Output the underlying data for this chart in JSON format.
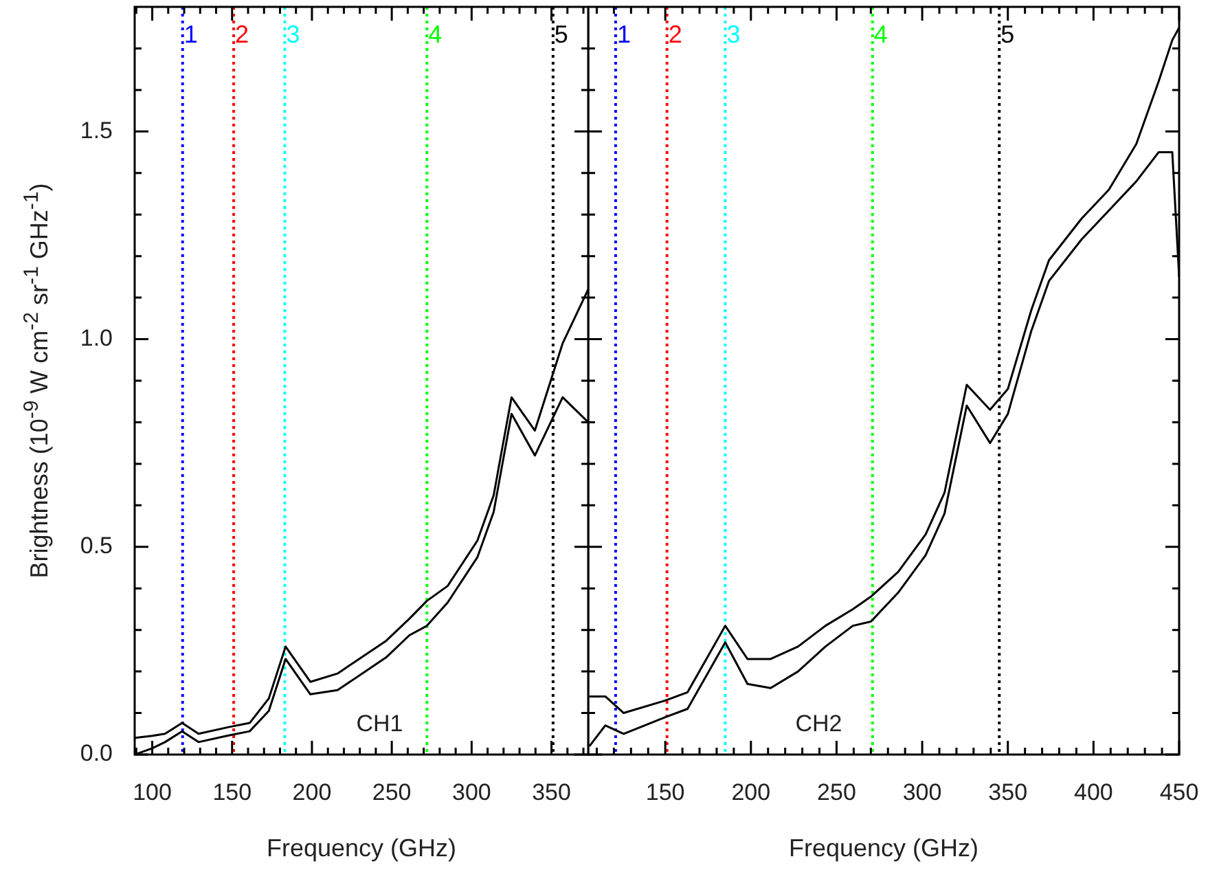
{
  "chart_data": [
    {
      "type": "line",
      "xlabel": "Frequency (GHz)",
      "ylabel": "Brightness (10$^{-9}$ W cm$^{-2}$ sr$^{-1}$ GHz$^{-1}$)",
      "legend": false,
      "annotations": [
        "CH1",
        {
          "text": "1",
          "x": 119,
          "y": 1.73
        },
        {
          "text": "2",
          "x": 151,
          "y": 1.73
        },
        {
          "text": "3",
          "x": 183,
          "y": 1.73
        },
        {
          "text": "4",
          "x": 272,
          "y": 1.73
        },
        {
          "text": "5",
          "x": 351,
          "y": 1.73
        }
      ],
      "xlim": [
        89,
        373
      ],
      "ylim": [
        0,
        1.8
      ],
      "xticks": [
        {
          "value": 90,
          "label": null
        },
        100,
        {
          "value": 110,
          "label": null
        },
        {
          "value": 120,
          "label": null
        },
        {
          "value": 130,
          "label": null
        },
        {
          "value": 140,
          "label": null
        },
        150,
        {
          "value": 160,
          "label": null
        },
        {
          "value": 170,
          "label": null
        },
        {
          "value": 180,
          "label": null
        },
        {
          "value": 190,
          "label": null
        },
        200,
        {
          "value": 210,
          "label": null
        },
        {
          "value": 220,
          "label": null
        },
        {
          "value": 230,
          "label": null
        },
        {
          "value": 240,
          "label": null
        },
        250,
        {
          "value": 260,
          "label": null
        },
        {
          "value": 270,
          "label": null
        },
        {
          "value": 280,
          "label": null
        },
        {
          "value": 290,
          "label": null
        },
        300,
        {
          "value": 310,
          "label": null
        },
        {
          "value": 320,
          "label": null
        },
        {
          "value": 330,
          "label": null
        },
        {
          "value": 340,
          "label": null
        },
        350,
        {
          "value": 360,
          "label": null
        },
        {
          "value": 370,
          "label": null
        }
      ],
      "yticks": [
        {
          "value": 0,
          "label": "0.0"
        },
        {
          "value": 0.1,
          "label": null
        },
        {
          "value": 0.2,
          "label": null
        },
        {
          "value": 0.3,
          "label": null
        },
        {
          "value": 0.4,
          "label": null
        },
        {
          "value": 0.5,
          "label": "0.5"
        },
        {
          "value": 0.6,
          "label": null
        },
        {
          "value": 0.7,
          "label": null
        },
        {
          "value": 0.8,
          "label": null
        },
        {
          "value": 0.9,
          "label": null
        },
        {
          "value": 1,
          "label": "1.0"
        },
        {
          "value": 1.1,
          "label": null
        },
        {
          "value": 1.2,
          "label": null
        },
        {
          "value": 1.3,
          "label": null
        },
        {
          "value": 1.4,
          "label": null
        },
        {
          "value": 1.5,
          "label": "1.5"
        },
        {
          "value": 1.6,
          "label": null
        },
        {
          "value": 1.7,
          "label": null
        }
      ],
      "ref_lines": [
        {
          "axis": "x",
          "value": 119,
          "color": "#0000ff",
          "line_style": "dotted"
        },
        {
          "axis": "x",
          "value": 151,
          "color": "#ff0000",
          "line_style": "dotted"
        },
        {
          "axis": "x",
          "value": 183,
          "color": "#00ffff",
          "line_style": "dotted"
        },
        {
          "axis": "x",
          "value": 272,
          "color": "#00ff00",
          "line_style": "dotted"
        },
        {
          "axis": "x",
          "value": 351,
          "color": "#000000",
          "line_style": "dotted"
        }
      ],
      "series": [
        {
          "color": "#000000",
          "x": [
            89,
            100,
            108,
            118.7,
            129,
            147.7,
            161,
            173,
            183.5,
            199,
            216,
            229.5,
            246.5,
            261,
            272,
            285,
            303.6,
            313.8,
            318,
            325,
            339.6,
            357,
            373
          ],
          "values": [
            0.04,
            0.045,
            0.05,
            0.076,
            0.05,
            0.066,
            0.076,
            0.135,
            0.26,
            0.175,
            0.195,
            0.23,
            0.274,
            0.327,
            0.37,
            0.406,
            0.515,
            0.624,
            0.713,
            0.86,
            0.78,
            0.99,
            1.12
          ]
        },
        {
          "color": "#000000",
          "x": [
            89,
            100,
            108,
            118.7,
            129,
            147.7,
            161,
            173,
            183.5,
            199,
            216,
            229.5,
            246.5,
            261,
            272,
            285,
            303.6,
            313.8,
            318,
            325,
            339.6,
            357,
            373
          ],
          "values": [
            0.0,
            0.015,
            0.03,
            0.056,
            0.03,
            0.046,
            0.056,
            0.105,
            0.23,
            0.145,
            0.155,
            0.19,
            0.234,
            0.287,
            0.31,
            0.366,
            0.475,
            0.584,
            0.673,
            0.82,
            0.72,
            0.86,
            0.8
          ]
        }
      ]
    },
    {
      "type": "line",
      "xlabel": "Frequency (GHz)",
      "legend": false,
      "tick_labels": "x",
      "annotations": [
        "CH2",
        {
          "text": "1",
          "x": 121,
          "y": 1.73
        },
        {
          "text": "2",
          "x": 151,
          "y": 1.73
        },
        {
          "text": "3",
          "x": 185,
          "y": 1.73
        },
        {
          "text": "4",
          "x": 271,
          "y": 1.73
        },
        {
          "text": "5",
          "x": 345,
          "y": 1.73
        }
      ],
      "xlim": [
        105,
        450
      ],
      "ylim": [
        0,
        1.8
      ],
      "xticks": [
        {
          "value": 110,
          "label": null
        },
        {
          "value": 120,
          "label": null
        },
        {
          "value": 130,
          "label": null
        },
        {
          "value": 140,
          "label": null
        },
        150,
        {
          "value": 160,
          "label": null
        },
        {
          "value": 170,
          "label": null
        },
        {
          "value": 180,
          "label": null
        },
        {
          "value": 190,
          "label": null
        },
        200,
        {
          "value": 210,
          "label": null
        },
        {
          "value": 220,
          "label": null
        },
        {
          "value": 230,
          "label": null
        },
        {
          "value": 240,
          "label": null
        },
        250,
        {
          "value": 260,
          "label": null
        },
        {
          "value": 270,
          "label": null
        },
        {
          "value": 280,
          "label": null
        },
        {
          "value": 290,
          "label": null
        },
        300,
        {
          "value": 310,
          "label": null
        },
        {
          "value": 320,
          "label": null
        },
        {
          "value": 330,
          "label": null
        },
        {
          "value": 340,
          "label": null
        },
        350,
        {
          "value": 360,
          "label": null
        },
        {
          "value": 370,
          "label": null
        },
        {
          "value": 380,
          "label": null
        },
        {
          "value": 390,
          "label": null
        },
        400,
        {
          "value": 410,
          "label": null
        },
        {
          "value": 420,
          "label": null
        },
        {
          "value": 430,
          "label": null
        },
        {
          "value": 440,
          "label": null
        },
        450
      ],
      "yticks": [
        0,
        {
          "value": 0.1,
          "label": null
        },
        {
          "value": 0.2,
          "label": null
        },
        {
          "value": 0.3,
          "label": null
        },
        {
          "value": 0.4,
          "label": null
        },
        0.5,
        {
          "value": 0.6,
          "label": null
        },
        {
          "value": 0.7,
          "label": null
        },
        {
          "value": 0.8,
          "label": null
        },
        {
          "value": 0.9,
          "label": null
        },
        1,
        {
          "value": 1.1,
          "label": null
        },
        {
          "value": 1.2,
          "label": null
        },
        {
          "value": 1.3,
          "label": null
        },
        {
          "value": 1.4,
          "label": null
        },
        1.5,
        {
          "value": 1.6,
          "label": null
        },
        {
          "value": 1.7,
          "label": null
        }
      ],
      "ref_lines": [
        {
          "axis": "x",
          "value": 121,
          "color": "#0000ff",
          "line_style": "dotted"
        },
        {
          "axis": "x",
          "value": 151,
          "color": "#ff0000",
          "line_style": "dotted"
        },
        {
          "axis": "x",
          "value": 185,
          "color": "#00ffff",
          "line_style": "dotted"
        },
        {
          "axis": "x",
          "value": 271,
          "color": "#00ff00",
          "line_style": "dotted"
        },
        {
          "axis": "x",
          "value": 345,
          "color": "#000000",
          "line_style": "dotted"
        }
      ],
      "series": [
        {
          "color": "#000000",
          "x": [
            105.7,
            115,
            125.7,
            150,
            163,
            174,
            185,
            198,
            211.5,
            227.5,
            243.5,
            259.5,
            270,
            286,
            302,
            313,
            319.5,
            326,
            339.6,
            350,
            363.7,
            374,
            393,
            409,
            425,
            438,
            446,
            450
          ],
          "values": [
            0.14,
            0.14,
            0.1,
            0.13,
            0.15,
            0.23,
            0.31,
            0.23,
            0.23,
            0.26,
            0.31,
            0.35,
            0.38,
            0.44,
            0.53,
            0.63,
            0.76,
            0.89,
            0.83,
            0.88,
            1.07,
            1.19,
            1.29,
            1.36,
            1.47,
            1.62,
            1.72,
            1.75
          ]
        },
        {
          "color": "#000000",
          "x": [
            105.7,
            115,
            125.7,
            150,
            163,
            174,
            185,
            198,
            211.5,
            227.5,
            243.5,
            259.5,
            270,
            286,
            302,
            313,
            319.5,
            326,
            339.6,
            350,
            363.7,
            374,
            393,
            409,
            425,
            438,
            446,
            450
          ],
          "values": [
            0.02,
            0.07,
            0.05,
            0.09,
            0.11,
            0.19,
            0.27,
            0.17,
            0.16,
            0.2,
            0.26,
            0.31,
            0.32,
            0.39,
            0.48,
            0.58,
            0.71,
            0.84,
            0.75,
            0.82,
            1.02,
            1.14,
            1.24,
            1.31,
            1.38,
            1.45,
            1.45,
            1.15
          ]
        }
      ]
    }
  ]
}
